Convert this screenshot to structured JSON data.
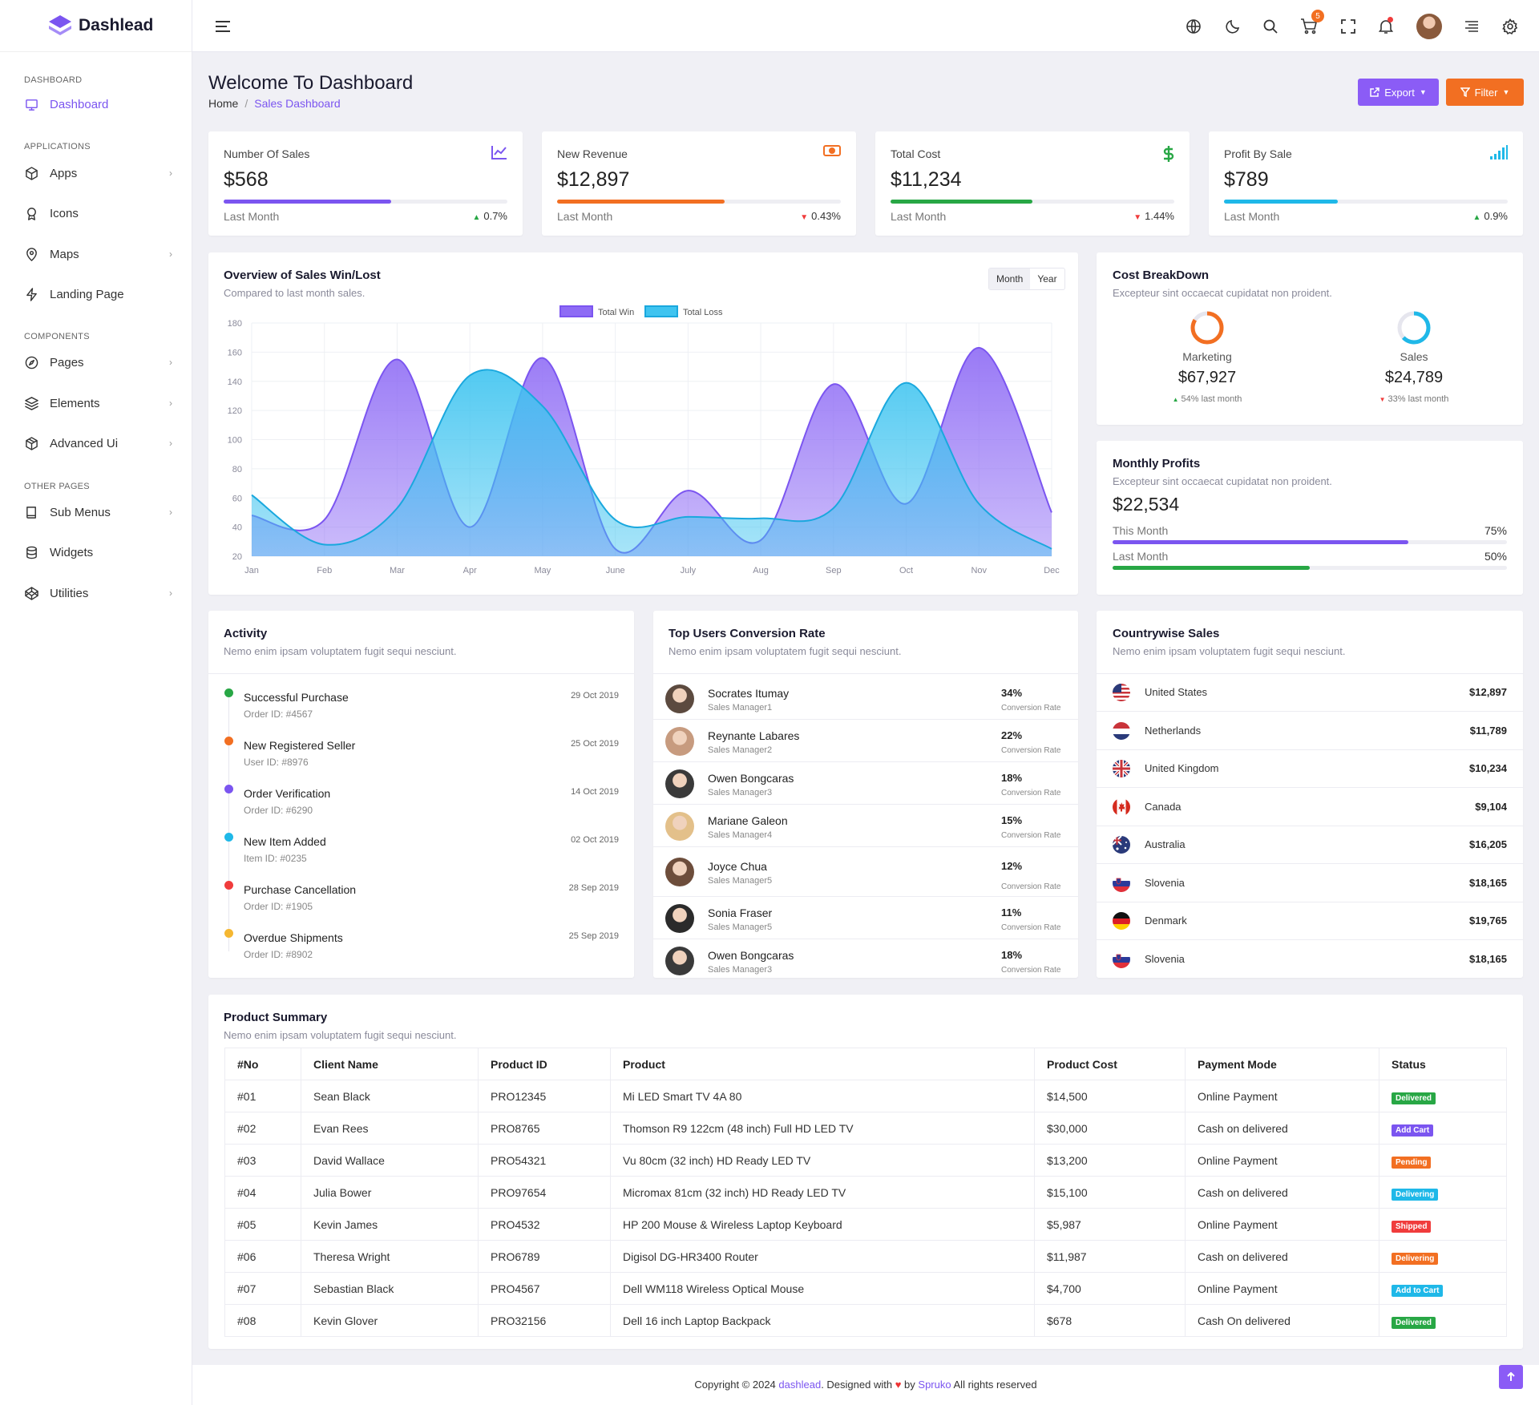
{
  "brand": {
    "name": "Dashlead"
  },
  "sidebar": {
    "categories": [
      {
        "label": "DASHBOARD",
        "y": 94
      },
      {
        "label": "APPLICATIONS",
        "y": 177
      },
      {
        "label": "COMPONENTS",
        "y": 414
      },
      {
        "label": "OTHER PAGES",
        "y": 601
      }
    ],
    "items": [
      {
        "label": "Dashboard",
        "icon": "monitor-icon",
        "active": true,
        "chevron": false
      },
      {
        "label": "Apps",
        "icon": "box-icon",
        "active": false,
        "chevron": true
      },
      {
        "label": "Icons",
        "icon": "award-icon",
        "active": false,
        "chevron": false
      },
      {
        "label": "Maps",
        "icon": "map-pin-icon",
        "active": false,
        "chevron": true
      },
      {
        "label": "Landing Page",
        "icon": "zap-icon",
        "active": false,
        "chevron": false
      },
      {
        "label": "Pages",
        "icon": "compass-icon",
        "active": false,
        "chevron": true
      },
      {
        "label": "Elements",
        "icon": "layers-icon",
        "active": false,
        "chevron": true
      },
      {
        "label": "Advanced Ui",
        "icon": "package-icon",
        "active": false,
        "chevron": true
      },
      {
        "label": "Sub Menus",
        "icon": "book-icon",
        "active": false,
        "chevron": true
      },
      {
        "label": "Widgets",
        "icon": "database-icon",
        "active": false,
        "chevron": false
      },
      {
        "label": "Utilities",
        "icon": "codepen-icon",
        "active": false,
        "chevron": true
      }
    ]
  },
  "header": {
    "cart_count": "5"
  },
  "page": {
    "title": "Welcome To Dashboard",
    "breadcrumb_home": "Home",
    "breadcrumb_sep": "/",
    "breadcrumb_current": "Sales Dashboard",
    "export_label": "Export",
    "filter_label": "Filter"
  },
  "stats": [
    {
      "label": "Number Of Sales",
      "value": "$568",
      "foot": "Last Month",
      "change": "0.7%",
      "dir": "up",
      "color": "#7b55f0",
      "progress": 0.59,
      "icon": "line-chart-icon"
    },
    {
      "label": "New Revenue",
      "value": "$12,897",
      "foot": "Last Month",
      "change": "0.43%",
      "dir": "down",
      "color": "#f26f22",
      "progress": 0.59,
      "icon": "money-icon"
    },
    {
      "label": "Total Cost",
      "value": "$11,234",
      "foot": "Last Month",
      "change": "1.44%",
      "dir": "down",
      "color": "#28a745",
      "progress": 0.5,
      "icon": "dollar-icon"
    },
    {
      "label": "Profit By Sale",
      "value": "$789",
      "foot": "Last Month",
      "change": "0.9%",
      "dir": "up",
      "color": "#1fb8e8",
      "progress": 0.4,
      "icon": "signal-icon"
    }
  ],
  "overview": {
    "title": "Overview of Sales Win/Lost",
    "subtitle": "Compared to last month sales.",
    "tab_month": "Month",
    "tab_year": "Year"
  },
  "chart_data": {
    "type": "area",
    "categories": [
      "Jan",
      "Feb",
      "Mar",
      "Apr",
      "May",
      "June",
      "July",
      "Aug",
      "Sep",
      "Oct",
      "Nov",
      "Dec"
    ],
    "series": [
      {
        "name": "Total Win",
        "values": [
          48,
          45,
          155,
          40,
          156,
          25,
          65,
          31,
          138,
          56,
          163,
          50
        ],
        "color": "#8e6bf5"
      },
      {
        "name": "Total Loss",
        "values": [
          62,
          28,
          53,
          144,
          123,
          45,
          47,
          46,
          53,
          139,
          56,
          25
        ],
        "color": "#3fc4f0"
      }
    ],
    "ylim": [
      20,
      180
    ],
    "yticks": [
      "180",
      "160",
      "140",
      "120",
      "100",
      "80",
      "60",
      "40",
      "20"
    ],
    "legend": "top-center",
    "grid": true
  },
  "cost_breakdown": {
    "title": "Cost BreakDown",
    "subtitle": "Excepteur sint occaecat cupidatat non proident.",
    "items": [
      {
        "label": "Marketing",
        "value": "$67,927",
        "change": "54% last month",
        "dir": "up",
        "color": "#f26f22",
        "fraction": 0.54
      },
      {
        "label": "Sales",
        "value": "$24,789",
        "change": "33% last month",
        "dir": "down",
        "color": "#1fb8e8",
        "fraction": 0.33
      }
    ]
  },
  "monthly_profits": {
    "title": "Monthly Profits",
    "subtitle": "Excepteur sint occaecat cupidatat non proident.",
    "value": "$22,534",
    "bars": [
      {
        "label": "This Month",
        "pct": "75%",
        "fraction": 0.75,
        "color": "#7b55f0"
      },
      {
        "label": "Last Month",
        "pct": "50%",
        "fraction": 0.5,
        "color": "#28a745"
      }
    ]
  },
  "activity": {
    "title": "Activity",
    "subtitle": "Nemo enim ipsam voluptatem fugit sequi nesciunt.",
    "items": [
      {
        "title": "Successful Purchase",
        "meta": "Order ID: #4567",
        "date": "29 Oct 2019",
        "color": "#28a745"
      },
      {
        "title": "New Registered Seller",
        "meta": "User ID: #8976",
        "date": "25 Oct 2019",
        "color": "#f26f22"
      },
      {
        "title": "Order Verification",
        "meta": "Order ID: #6290",
        "date": "14 Oct 2019",
        "color": "#7b55f0"
      },
      {
        "title": "New Item Added",
        "meta": "Item ID: #0235",
        "date": "02 Oct 2019",
        "color": "#1fb8e8"
      },
      {
        "title": "Purchase Cancellation",
        "meta": "Order ID: #1905",
        "date": "28 Sep 2019",
        "color": "#f03c3c"
      },
      {
        "title": "Overdue Shipments",
        "meta": "Order ID: #8902",
        "date": "25 Sep 2019",
        "color": "#f5b731"
      }
    ]
  },
  "top_users": {
    "title": "Top Users Conversion Rate",
    "subtitle": "Nemo enim ipsam voluptatem fugit sequi nesciunt.",
    "items": [
      {
        "name": "Socrates Itumay",
        "role": "Sales Manager1",
        "rate": "34%",
        "rate_label": "Conversion Rate"
      },
      {
        "name": "Reynante Labares",
        "role": "Sales Manager2",
        "rate": "22%",
        "rate_label": "Conversion Rate"
      },
      {
        "name": "Owen Bongcaras",
        "role": "Sales Manager3",
        "rate": "18%",
        "rate_label": "Conversion Rate"
      },
      {
        "name": "Mariane Galeon",
        "role": "Sales Manager4",
        "rate": "15%",
        "rate_label": "Conversion Rate"
      },
      {
        "name": "Joyce Chua",
        "role": "Sales Manager5",
        "rate": "12%",
        "rate_label": "Conversion Rate"
      },
      {
        "name": "Sonia Fraser",
        "role": "Sales Manager5",
        "rate": "11%",
        "rate_label": "Conversion Rate"
      },
      {
        "name": "Owen Bongcaras",
        "role": "Sales Manager3",
        "rate": "18%",
        "rate_label": "Conversion Rate"
      }
    ]
  },
  "countries": {
    "title": "Countrywise Sales",
    "subtitle": "Nemo enim ipsam voluptatem fugit sequi nesciunt.",
    "items": [
      {
        "name": "United States",
        "value": "$12,897",
        "flag": "us-flag-icon"
      },
      {
        "name": "Netherlands",
        "value": "$11,789",
        "flag": "nl-flag-icon"
      },
      {
        "name": "United Kingdom",
        "value": "$10,234",
        "flag": "uk-flag-icon"
      },
      {
        "name": "Canada",
        "value": "$9,104",
        "flag": "ca-flag-icon"
      },
      {
        "name": "Australia",
        "value": "$16,205",
        "flag": "au-flag-icon"
      },
      {
        "name": "Slovenia",
        "value": "$18,165",
        "flag": "si-flag-icon"
      },
      {
        "name": "Denmark",
        "value": "$19,765",
        "flag": "de-flag-icon"
      },
      {
        "name": "Slovenia",
        "value": "$18,165",
        "flag": "si-flag-icon"
      }
    ]
  },
  "products": {
    "title": "Product Summary",
    "subtitle": "Nemo enim ipsam voluptatem fugit sequi nesciunt.",
    "headers": [
      "#No",
      "Client Name",
      "Product ID",
      "Product",
      "Product Cost",
      "Payment Mode",
      "Status"
    ],
    "rows": [
      {
        "no": "#01",
        "client": "Sean Black",
        "pid": "PRO12345",
        "product": "Mi LED Smart TV 4A 80",
        "cost": "$14,500",
        "mode": "Online Payment",
        "status": "Delivered",
        "color": "#28a745"
      },
      {
        "no": "#02",
        "client": "Evan Rees",
        "pid": "PRO8765",
        "product": "Thomson R9 122cm (48 inch) Full HD LED TV",
        "cost": "$30,000",
        "mode": "Cash on delivered",
        "status": "Add Cart",
        "color": "#7b55f0"
      },
      {
        "no": "#03",
        "client": "David Wallace",
        "pid": "PRO54321",
        "product": "Vu 80cm (32 inch) HD Ready LED TV",
        "cost": "$13,200",
        "mode": "Online Payment",
        "status": "Pending",
        "color": "#f26f22"
      },
      {
        "no": "#04",
        "client": "Julia Bower",
        "pid": "PRO97654",
        "product": "Micromax 81cm (32 inch) HD Ready LED TV",
        "cost": "$15,100",
        "mode": "Cash on delivered",
        "status": "Delivering",
        "color": "#1fb8e8"
      },
      {
        "no": "#05",
        "client": "Kevin James",
        "pid": "PRO4532",
        "product": "HP 200 Mouse &amp; Wireless Laptop Keyboard",
        "cost": "$5,987",
        "mode": "Online Payment",
        "status": "Shipped",
        "color": "#f03c3c"
      },
      {
        "no": "#06",
        "client": "Theresa Wright",
        "pid": "PRO6789",
        "product": "Digisol DG-HR3400 Router",
        "cost": "$11,987",
        "mode": "Cash on delivered",
        "status": "Delivering",
        "color": "#f26f22"
      },
      {
        "no": "#07",
        "client": "Sebastian Black",
        "pid": "PRO4567",
        "product": "Dell WM118 Wireless Optical Mouse",
        "cost": "$4,700",
        "mode": "Online Payment",
        "status": "Add to Cart",
        "color": "#1fb8e8"
      },
      {
        "no": "#08",
        "client": "Kevin Glover",
        "pid": "PRO32156",
        "product": "Dell 16 inch Laptop Backpack",
        "cost": "$678",
        "mode": "Cash On delivered",
        "status": "Delivered",
        "color": "#28a745"
      }
    ]
  },
  "footer": {
    "prefix": "Copyright © 2024",
    "brand": "dashlead",
    "mid": ". Designed with",
    "by": "by",
    "author": "Spruko",
    "suffix": "All rights reserved"
  }
}
